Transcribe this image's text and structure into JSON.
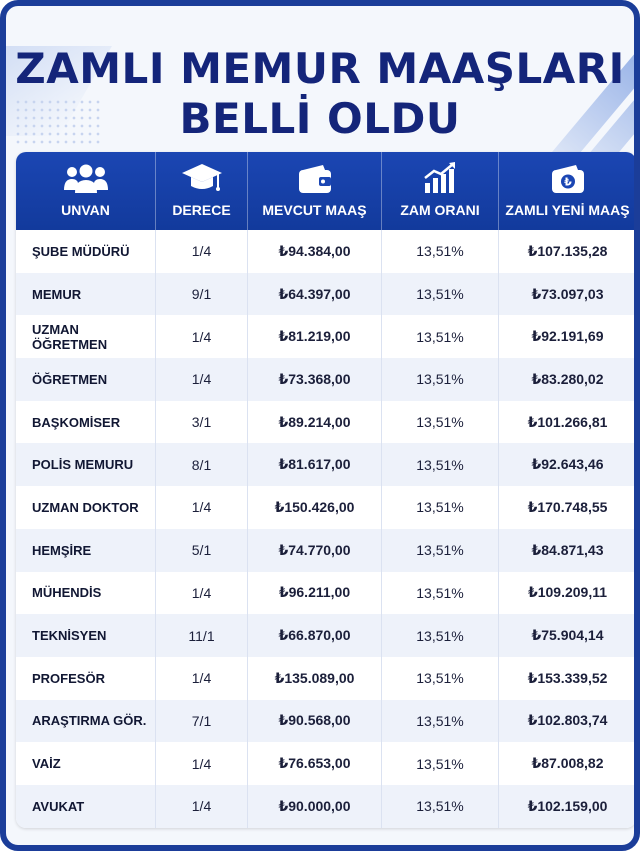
{
  "title_line1": "ZAMLI MEMUR MAAŞLARI",
  "title_line2": "BELLİ OLDU",
  "headers": {
    "unvan": "UNVAN",
    "derece": "DERECE",
    "mevcut": "MEVCUT MAAŞ",
    "oran": "ZAM ORANI",
    "yeni": "ZAMLI YENİ MAAŞ"
  },
  "icons": {
    "unvan": "people-group-icon",
    "derece": "graduation-cap-icon",
    "mevcut": "wallet-icon",
    "oran": "bar-chart-growth-icon",
    "yeni": "lira-wallet-icon"
  },
  "colors": {
    "header_bg": "#123a9c",
    "title": "#14257a",
    "frame": "#1b3d99"
  },
  "rows": [
    {
      "unvan": "ŞUBE MÜDÜRÜ",
      "derece": "1/4",
      "mevcut": "₺94.384,00",
      "oran": "13,51%",
      "yeni": "₺107.135,28"
    },
    {
      "unvan": "MEMUR",
      "derece": "9/1",
      "mevcut": "₺64.397,00",
      "oran": "13,51%",
      "yeni": "₺73.097,03"
    },
    {
      "unvan": "UZMAN ÖĞRETMEN",
      "derece": "1/4",
      "mevcut": "₺81.219,00",
      "oran": "13,51%",
      "yeni": "₺92.191,69"
    },
    {
      "unvan": "ÖĞRETMEN",
      "derece": "1/4",
      "mevcut": "₺73.368,00",
      "oran": "13,51%",
      "yeni": "₺83.280,02"
    },
    {
      "unvan": "BAŞKOMİSER",
      "derece": "3/1",
      "mevcut": "₺89.214,00",
      "oran": "13,51%",
      "yeni": "₺101.266,81"
    },
    {
      "unvan": "POLİS MEMURU",
      "derece": "8/1",
      "mevcut": "₺81.617,00",
      "oran": "13,51%",
      "yeni": "₺92.643,46"
    },
    {
      "unvan": "UZMAN DOKTOR",
      "derece": "1/4",
      "mevcut": "₺150.426,00",
      "oran": "13,51%",
      "yeni": "₺170.748,55"
    },
    {
      "unvan": "HEMŞİRE",
      "derece": "5/1",
      "mevcut": "₺74.770,00",
      "oran": "13,51%",
      "yeni": "₺84.871,43"
    },
    {
      "unvan": "MÜHENDİS",
      "derece": "1/4",
      "mevcut": "₺96.211,00",
      "oran": "13,51%",
      "yeni": "₺109.209,11"
    },
    {
      "unvan": "TEKNİSYEN",
      "derece": "11/1",
      "mevcut": "₺66.870,00",
      "oran": "13,51%",
      "yeni": "₺75.904,14"
    },
    {
      "unvan": "PROFESÖR",
      "derece": "1/4",
      "mevcut": "₺135.089,00",
      "oran": "13,51%",
      "yeni": "₺153.339,52"
    },
    {
      "unvan": "ARAŞTIRMA GÖR.",
      "derece": "7/1",
      "mevcut": "₺90.568,00",
      "oran": "13,51%",
      "yeni": "₺102.803,74"
    },
    {
      "unvan": "VAİZ",
      "derece": "1/4",
      "mevcut": "₺76.653,00",
      "oran": "13,51%",
      "yeni": "₺87.008,82"
    },
    {
      "unvan": "AVUKAT",
      "derece": "1/4",
      "mevcut": "₺90.000,00",
      "oran": "13,51%",
      "yeni": "₺102.159,00"
    }
  ]
}
